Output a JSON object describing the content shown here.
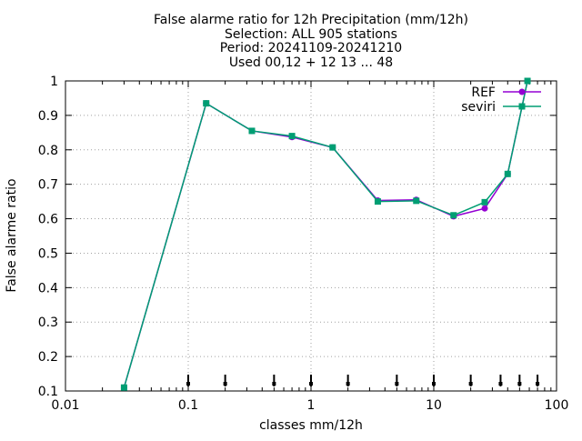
{
  "chart_data": {
    "type": "line",
    "title_lines": [
      "False alarme ratio  for 12h Precipitation (mm/12h)",
      "Selection: ALL    905 stations",
      "Period: 20241109-20241210",
      "Used 00,12 + 12 13 ... 48"
    ],
    "xlabel": "classes mm/12h",
    "ylabel": "False alarme ratio",
    "x_scale": "log",
    "xlim": [
      0.01,
      100
    ],
    "ylim": [
      0.1,
      1.0
    ],
    "x_ticks": [
      0.01,
      0.1,
      1,
      10,
      100
    ],
    "x_tick_labels": [
      "0.01",
      "0.1",
      "1",
      "10",
      "100"
    ],
    "y_ticks": [
      0.1,
      0.2,
      0.3,
      0.4,
      0.5,
      0.6,
      0.7,
      0.8,
      0.9,
      1.0
    ],
    "y_tick_labels": [
      "0.1",
      "0.2",
      "0.3",
      "0.4",
      "0.5",
      "0.6",
      "0.7",
      "0.8",
      "0.9",
      "1"
    ],
    "grid": true,
    "legend_position": "top-right",
    "class_markers_x": [
      0.1,
      0.2,
      0.5,
      1,
      2,
      5,
      10,
      20,
      35,
      50,
      70
    ],
    "series": [
      {
        "name": "REF",
        "color": "#9400d3",
        "x": [
          0.03,
          0.14,
          0.33,
          0.7,
          1.5,
          3.5,
          7.2,
          14.5,
          26,
          40,
          58
        ],
        "y": [
          0.11,
          0.935,
          0.855,
          0.837,
          0.807,
          0.653,
          0.655,
          0.607,
          0.63,
          0.73,
          1.0
        ]
      },
      {
        "name": "seviri",
        "color": "#009e73",
        "x": [
          0.03,
          0.14,
          0.33,
          0.7,
          1.5,
          3.5,
          7.2,
          14.5,
          26,
          40,
          58
        ],
        "y": [
          0.11,
          0.935,
          0.855,
          0.84,
          0.807,
          0.65,
          0.652,
          0.61,
          0.648,
          0.73,
          1.0
        ]
      }
    ]
  }
}
